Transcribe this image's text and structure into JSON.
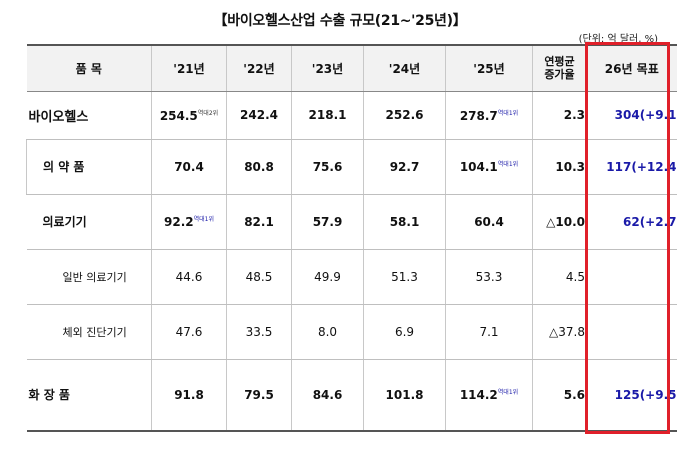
{
  "title": "【바이오헬스산업 수출 규모(21~'25년)】",
  "unit": "(단위: 억 달러, %)",
  "headers": {
    "item": "품 목",
    "y21": "'21년",
    "y22": "'22년",
    "y23": "'23년",
    "y24": "'24년",
    "y25": "'25년",
    "growth_line1": "연평균",
    "growth_line2": "증가율",
    "target": "26년 목표"
  },
  "rows": [
    {
      "name": "바이오헬스",
      "y21": "254.5",
      "y21_note": "역대2위",
      "y22": "242.4",
      "y23": "218.1",
      "y24": "252.6",
      "y25": "278.7",
      "y25_note": "역대1위",
      "growth": "2.3",
      "target": "304(+9.1"
    },
    {
      "name": "의 약 품",
      "y21": "70.4",
      "y21_note": "",
      "y22": "80.8",
      "y23": "75.6",
      "y24": "92.7",
      "y25": "104.1",
      "y25_note": "역대1위",
      "growth": "10.3",
      "target": "117(+12.4"
    },
    {
      "name": "의료기기",
      "y21": "92.2",
      "y21_note": "역대1위",
      "y22": "82.1",
      "y23": "57.9",
      "y24": "58.1",
      "y25": "60.4",
      "y25_note": "",
      "growth": "△10.0",
      "target": "62(+2.7"
    },
    {
      "name": "일반 의료기기",
      "y21": "44.6",
      "y21_note": "",
      "y22": "48.5",
      "y23": "49.9",
      "y24": "51.3",
      "y25": "53.3",
      "y25_note": "",
      "growth": "4.5",
      "target": ""
    },
    {
      "name": "체외 진단기기",
      "y21": "47.6",
      "y21_note": "",
      "y22": "33.5",
      "y23": "8.0",
      "y24": "6.9",
      "y25": "7.1",
      "y25_note": "",
      "growth": "△37.8",
      "target": ""
    },
    {
      "name": "화 장 품",
      "y21": "91.8",
      "y21_note": "",
      "y22": "79.5",
      "y23": "84.6",
      "y24": "101.8",
      "y25": "114.2",
      "y25_note": "역대1위",
      "growth": "5.6",
      "target": "125(+9.5"
    }
  ],
  "colors": {
    "highlight_box": "#e0202a",
    "target_text": "#1a1aa8",
    "header_bg": "#f2f2f2"
  }
}
